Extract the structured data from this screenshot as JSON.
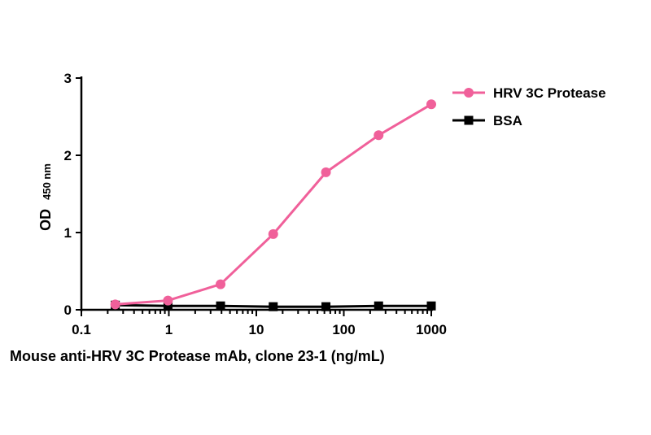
{
  "chart_data": {
    "type": "line",
    "x_scale": "log",
    "xlabel": "Mouse anti-HRV 3C Protease mAb, clone 23-1 (ng/mL)",
    "ylabel": "OD",
    "ylabel_sub": "450 nm",
    "xlim": [
      0.1,
      1000
    ],
    "ylim": [
      0,
      3
    ],
    "x_ticks": [
      "0.1",
      "1",
      "10",
      "100",
      "1000"
    ],
    "y_ticks": [
      "0",
      "1",
      "2",
      "3"
    ],
    "grid": false,
    "legend_position": "top-right",
    "x": [
      0.244,
      0.977,
      3.9,
      15.6,
      62.5,
      250,
      1000
    ],
    "series": [
      {
        "name": "HRV 3C Protease",
        "color": "#f0609a",
        "marker": "circle",
        "values": [
          0.07,
          0.12,
          0.33,
          0.98,
          1.78,
          2.26,
          2.66
        ]
      },
      {
        "name": "BSA",
        "color": "#000000",
        "marker": "square",
        "values": [
          0.06,
          0.05,
          0.05,
          0.04,
          0.04,
          0.05,
          0.05
        ]
      }
    ]
  }
}
